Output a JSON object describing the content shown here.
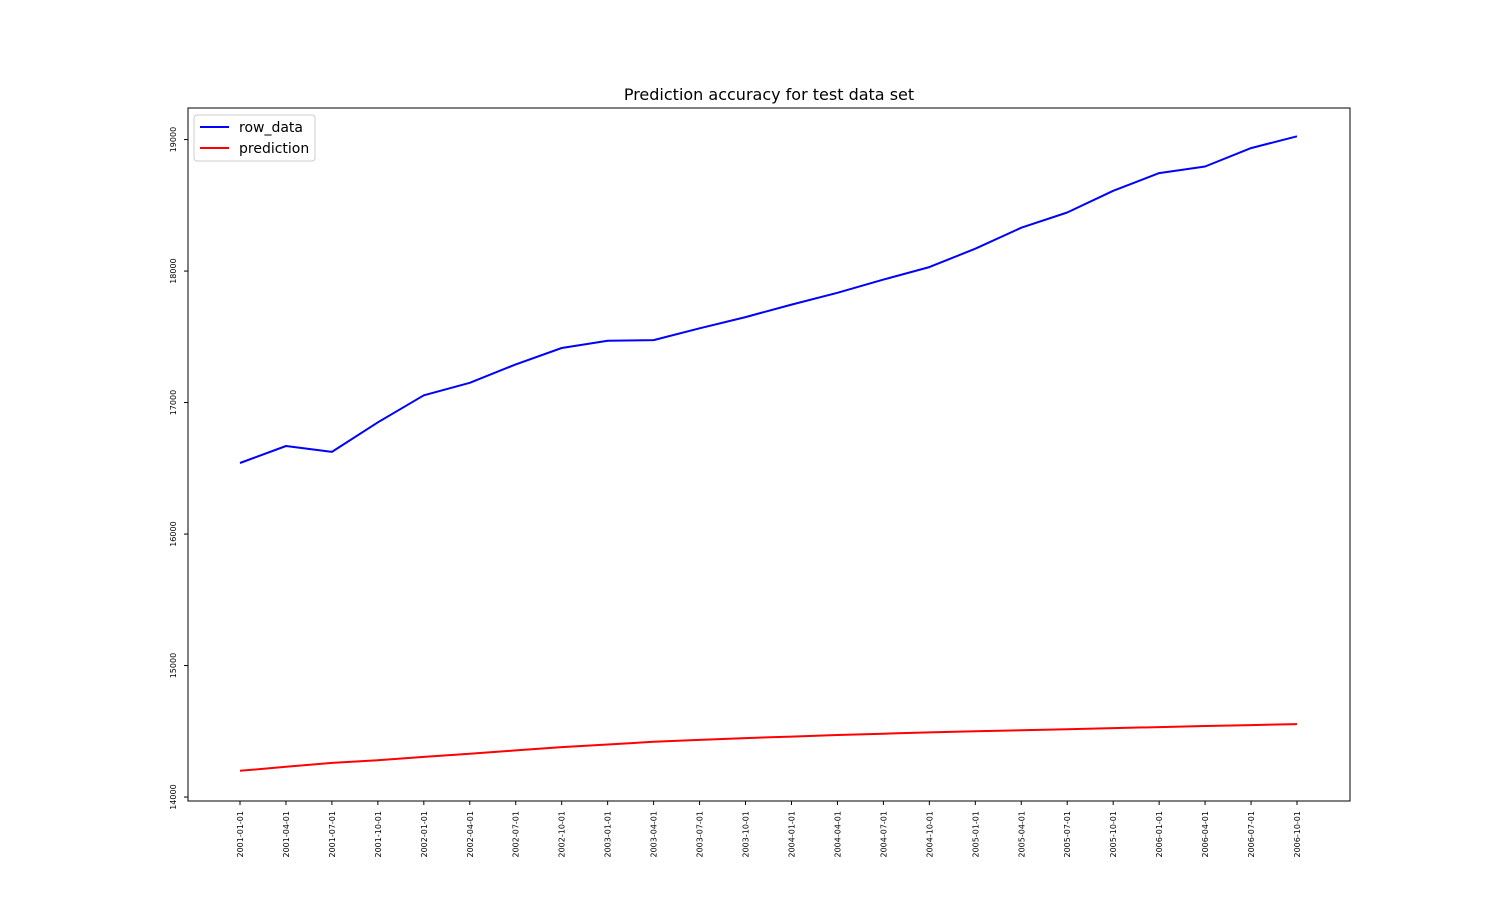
{
  "chart_data": {
    "type": "line",
    "title": "Prediction accuracy for test data set",
    "xlabel": "",
    "ylabel": "",
    "x": [
      "2001-01-01",
      "2001-04-01",
      "2001-07-01",
      "2001-10-01",
      "2002-01-01",
      "2002-04-01",
      "2002-07-01",
      "2002-10-01",
      "2003-01-01",
      "2003-04-01",
      "2003-07-01",
      "2003-10-01",
      "2004-01-01",
      "2004-04-01",
      "2004-07-01",
      "2004-10-01",
      "2005-01-01",
      "2005-04-01",
      "2005-07-01",
      "2005-10-01",
      "2006-01-01",
      "2006-04-01",
      "2006-07-01",
      "2006-10-01"
    ],
    "ylim": [
      13970,
      19240
    ],
    "yticks": [
      "14000",
      "15000",
      "16000",
      "17000",
      "18000",
      "19000"
    ],
    "grid": false,
    "legend_position": "upper-left",
    "series": [
      {
        "name": "row_data",
        "color": "#0000ff",
        "values": [
          16540,
          16670,
          16625,
          16850,
          17055,
          17150,
          17290,
          17415,
          17470,
          17475,
          17565,
          17650,
          17745,
          17835,
          17935,
          18030,
          18170,
          18330,
          18445,
          18610,
          18745,
          18795,
          18935,
          19025
        ]
      },
      {
        "name": "prediction",
        "color": "#ff0000",
        "values": [
          14200,
          14230,
          14260,
          14280,
          14305,
          14330,
          14355,
          14380,
          14400,
          14420,
          14435,
          14448,
          14460,
          14472,
          14482,
          14492,
          14500,
          14508,
          14516,
          14524,
          14532,
          14540,
          14547,
          14555
        ]
      }
    ]
  }
}
